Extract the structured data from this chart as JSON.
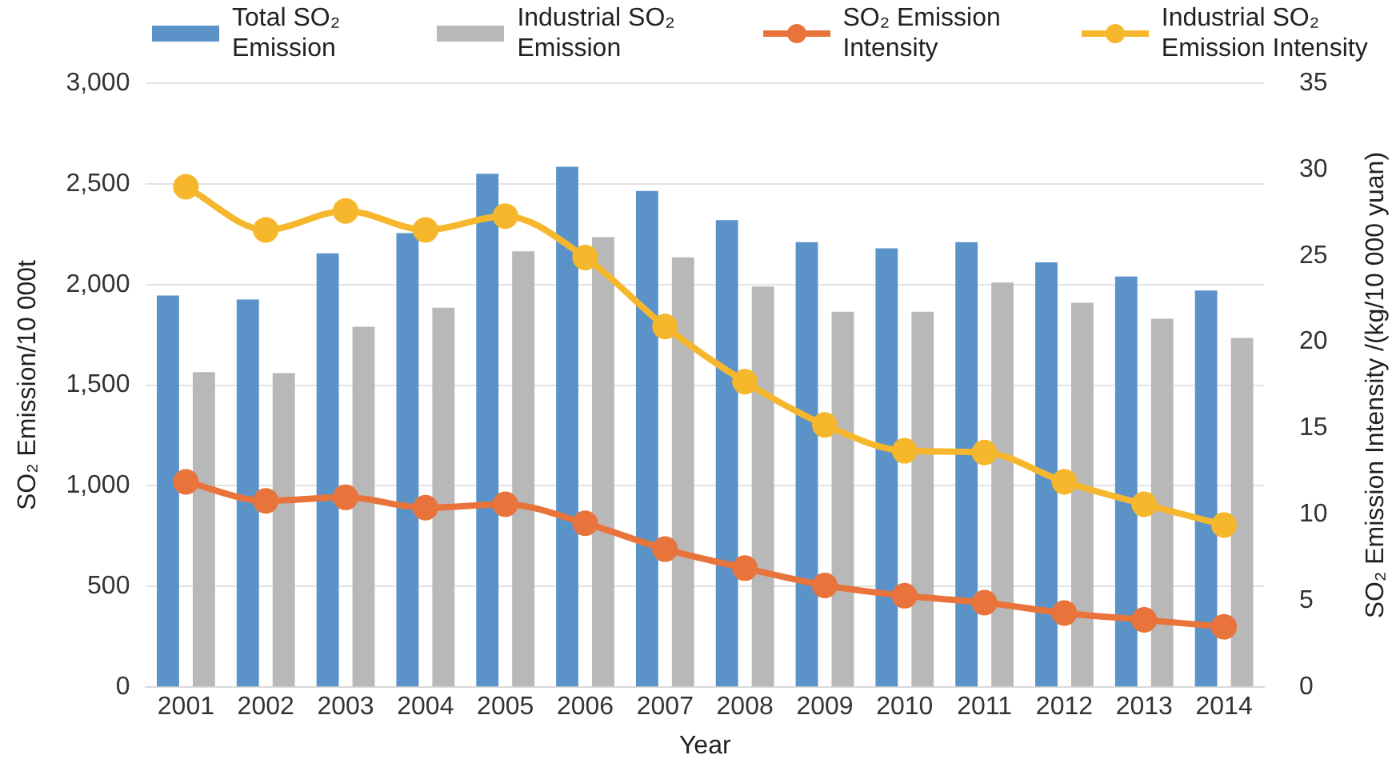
{
  "chart_data": {
    "type": "bar",
    "xlabel": "Year",
    "ylabel": "SO₂ Emission/10 000t",
    "y2label": "SO₂ Emission Intensity /(kg/10 000 yuan)",
    "categories": [
      "2001",
      "2002",
      "2003",
      "2004",
      "2005",
      "2006",
      "2007",
      "2008",
      "2009",
      "2010",
      "2011",
      "2012",
      "2013",
      "2014"
    ],
    "series": [
      {
        "name": "Total SO₂ Emission",
        "color": "#5b93c9",
        "values": [
          1945,
          1925,
          2155,
          2255,
          2550,
          2585,
          2465,
          2320,
          2210,
          2180,
          2210,
          2110,
          2040,
          1970
        ]
      },
      {
        "name": "Industrial SO₂ Emission",
        "color": "#b8b8b9",
        "values": [
          1565,
          1560,
          1790,
          1885,
          2165,
          2235,
          2135,
          1990,
          1865,
          1865,
          2010,
          1910,
          1830,
          1735
        ]
      },
      {
        "name": "SO₂ Emission Intensity",
        "type": "line",
        "axis": "y2",
        "color": "#e8743b",
        "values": [
          11.9,
          10.8,
          11.0,
          10.4,
          10.6,
          9.5,
          8.0,
          6.9,
          5.9,
          5.3,
          4.9,
          4.3,
          3.9,
          3.5
        ]
      },
      {
        "name": "Industrial SO₂ Emission Intensity",
        "type": "line",
        "axis": "y2",
        "color": "#f6b72c",
        "values": [
          29.0,
          26.5,
          27.6,
          26.5,
          27.3,
          24.9,
          20.9,
          17.7,
          15.2,
          13.7,
          13.6,
          11.9,
          10.6,
          9.4
        ]
      }
    ],
    "ylim": [
      0,
      3000
    ],
    "yticks": [
      0,
      {
        "value": 500,
        "label": "500"
      },
      {
        "value": 1000,
        "label": "1,000"
      },
      {
        "value": 1500,
        "label": "1,500"
      },
      {
        "value": 2000,
        "label": "2,000"
      },
      {
        "value": 2500,
        "label": "2,500"
      },
      {
        "value": 3000,
        "label": "3,000"
      }
    ],
    "y2lim": [
      0,
      35
    ],
    "y2ticks": [
      0,
      5,
      10,
      15,
      20,
      25,
      30,
      35
    ],
    "grid": "y",
    "legend": "top",
    "marker": "circle",
    "line_style": "solid"
  }
}
